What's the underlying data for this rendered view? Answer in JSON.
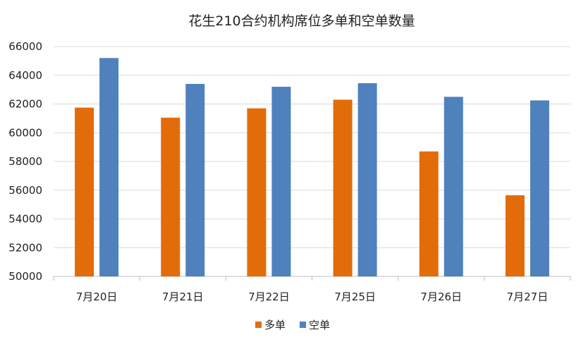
{
  "chart_data": {
    "type": "bar",
    "title": "花生210合约机构席位多单和空单数量",
    "categories": [
      "7月20日",
      "7月21日",
      "7月22日",
      "7月25日",
      "7月26日",
      "7月27日"
    ],
    "series": [
      {
        "name": "多单",
        "color": "#E36C0A",
        "values": [
          61750,
          61050,
          61700,
          62300,
          58700,
          55650
        ]
      },
      {
        "name": "空单",
        "color": "#4F81BD",
        "values": [
          65200,
          63400,
          63200,
          63450,
          62500,
          62250
        ]
      }
    ],
    "ylim": [
      50000,
      66000
    ],
    "yticks": [
      50000,
      52000,
      54000,
      56000,
      58000,
      60000,
      62000,
      64000,
      66000
    ],
    "grid": true,
    "legend_position": "bottom"
  }
}
